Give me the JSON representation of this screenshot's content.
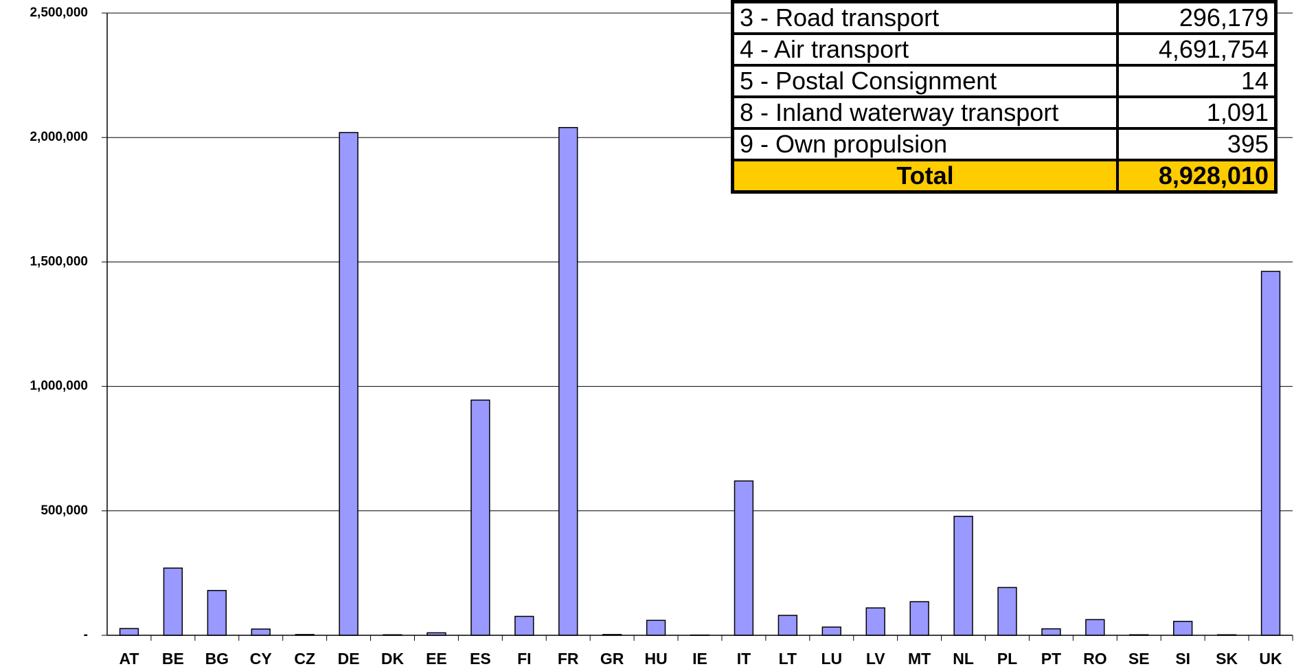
{
  "chart_data": {
    "type": "bar",
    "categories": [
      "AT",
      "BE",
      "BG",
      "CY",
      "CZ",
      "DE",
      "DK",
      "EE",
      "ES",
      "FI",
      "FR",
      "GR",
      "HU",
      "IE",
      "IT",
      "LT",
      "LU",
      "LV",
      "MT",
      "NL",
      "PL",
      "PT",
      "RO",
      "SE",
      "SI",
      "SK",
      "UK"
    ],
    "values": [
      27000,
      270000,
      180000,
      25000,
      3000,
      2020000,
      2000,
      10000,
      945000,
      76000,
      2040000,
      3000,
      60000,
      1000,
      620000,
      80000,
      33000,
      110000,
      135000,
      478000,
      192000,
      26000,
      63000,
      2000,
      56000,
      2000,
      1462000
    ],
    "color": "#9999ff",
    "ylim": [
      0,
      2500000
    ],
    "yticks": [
      {
        "value": 0,
        "label": "-"
      },
      {
        "value": 500000,
        "label": "500,000"
      },
      {
        "value": 1000000,
        "label": "1,000,000"
      },
      {
        "value": 1500000,
        "label": "1,500,000"
      },
      {
        "value": 2000000,
        "label": "2,000,000"
      },
      {
        "value": 2500000,
        "label": "2,500,000"
      }
    ],
    "grid": true
  },
  "table": {
    "rows": [
      [
        "3 - Road transport",
        "296,179"
      ],
      [
        "4 - Air transport",
        "4,691,754"
      ],
      [
        "5 - Postal Consignment",
        "14"
      ],
      [
        "8 - Inland waterway transport",
        "1,091"
      ],
      [
        "9 - Own propulsion",
        "395"
      ]
    ],
    "total": [
      "Total",
      "8,928,010"
    ]
  }
}
